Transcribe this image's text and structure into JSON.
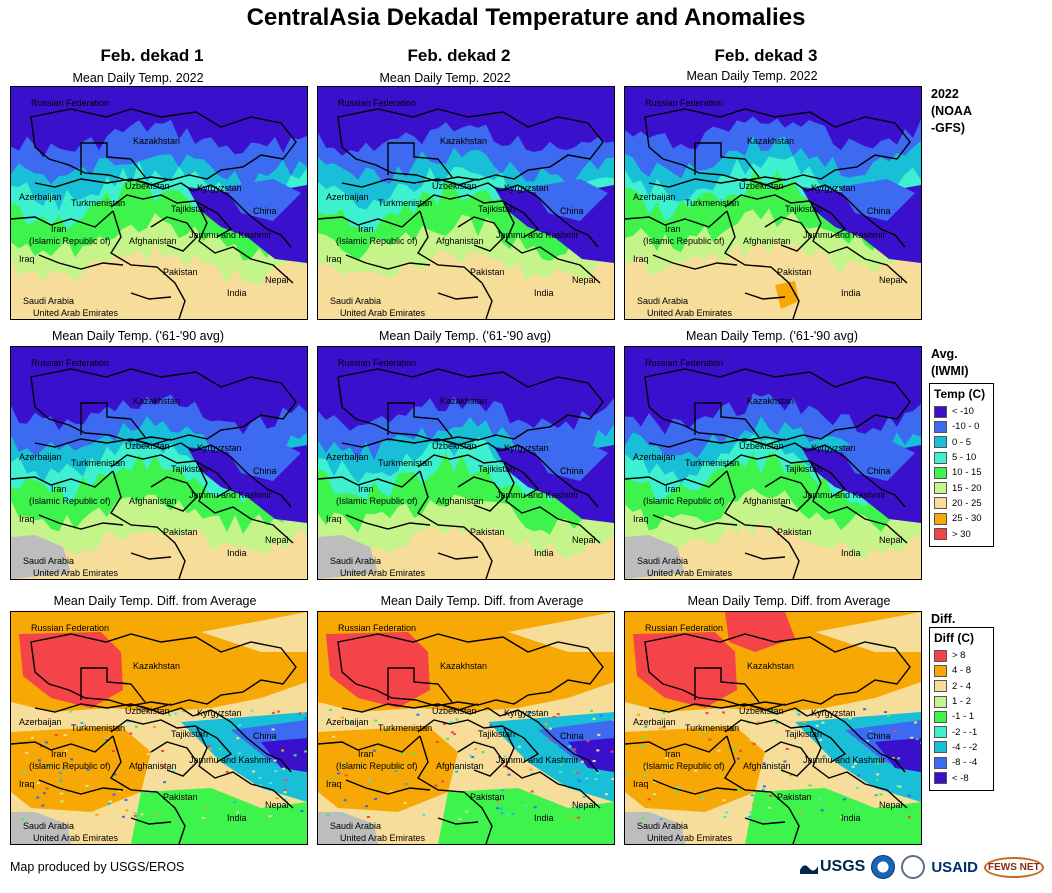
{
  "title": "CentralAsia Dekadal Temperature and Anomalies",
  "columns": [
    {
      "header": "Feb. dekad 1"
    },
    {
      "header": "Feb. dekad 2"
    },
    {
      "header": "Feb. dekad 3"
    }
  ],
  "rows": [
    {
      "subtitle": "Mean Daily Temp. 2022",
      "side_label": "2022\n(NOAA\n-GFS)",
      "kind": "current"
    },
    {
      "subtitle": "Mean Daily Temp. ('61-'90 avg)",
      "side_label": "Avg.\n(IWMI)",
      "kind": "avg"
    },
    {
      "subtitle": "Mean Daily Temp. Diff. from Average",
      "side_label": "Diff.",
      "kind": "diff"
    }
  ],
  "map_labels": [
    "Russian Federation",
    "Kazakhstan",
    "Uzbekistan",
    "Kyrgyzstan",
    "Azerbaijan",
    "Turkmenistan",
    "Tajikistan",
    "China",
    "Iran",
    "(Islamic Republic of)",
    "Afghanistan",
    "Jammu and Kashmir",
    "Iraq",
    "Pakistan",
    "Nepal",
    "India",
    "Saudi Arabia",
    "United Arab Emirates"
  ],
  "temp_legend": {
    "title": "Temp (C)",
    "items": [
      {
        "label": "< -10",
        "color": "#3b10cc"
      },
      {
        "label": "-10 - 0",
        "color": "#3c6af0"
      },
      {
        "label": "0 - 5",
        "color": "#19bfd6"
      },
      {
        "label": "5 - 10",
        "color": "#3df0cf"
      },
      {
        "label": "10 - 15",
        "color": "#3ef34c"
      },
      {
        "label": "15 - 20",
        "color": "#c5f58a"
      },
      {
        "label": "20 - 25",
        "color": "#f6dd9a"
      },
      {
        "label": "25 - 30",
        "color": "#f7a804"
      },
      {
        "label": "> 30",
        "color": "#f5434a"
      }
    ]
  },
  "diff_legend": {
    "title": "Diff (C)",
    "items": [
      {
        "label": "> 8",
        "color": "#f5434a"
      },
      {
        "label": "4 - 8",
        "color": "#f7a804"
      },
      {
        "label": "2 - 4",
        "color": "#f6dd9a"
      },
      {
        "label": "1 - 2",
        "color": "#c5f58a"
      },
      {
        "label": "-1 - 1",
        "color": "#3ef34c"
      },
      {
        "label": "-2 - -1",
        "color": "#3df0cf"
      },
      {
        "label": "-4 - -2",
        "color": "#19bfd6"
      },
      {
        "label": "-8 - -4",
        "color": "#3c6af0"
      },
      {
        "label": "< -8",
        "color": "#3b10cc"
      }
    ]
  },
  "footer": "Map produced by USGS/EROS",
  "logos": {
    "usgs": "USGS",
    "usaid": "USAID",
    "fews": "FEWS NET"
  },
  "colors": {
    "no_data": "#bdbdbd",
    "border": "#000000"
  }
}
